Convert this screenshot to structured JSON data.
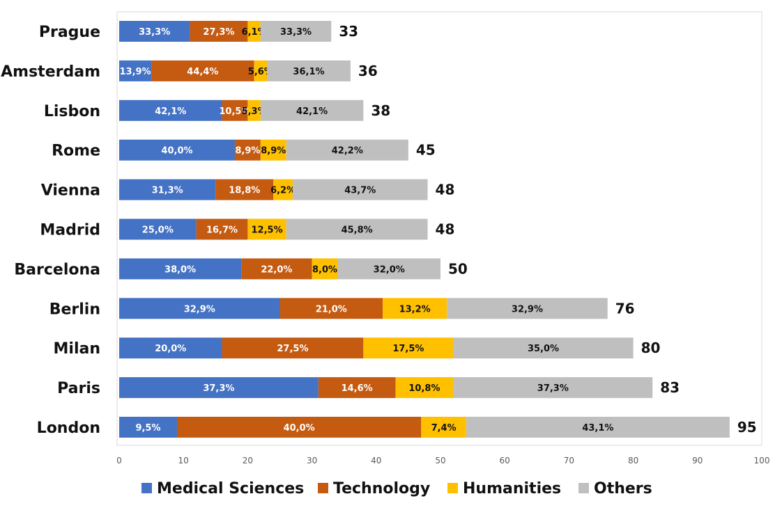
{
  "chart_data": {
    "type": "bar",
    "orientation": "horizontal",
    "stacked": true,
    "categories": [
      "Prague",
      "Amsterdam",
      "Lisbon",
      "Rome",
      "Vienna",
      "Madrid",
      "Barcelona",
      "Berlin",
      "Milan",
      "Paris",
      "London"
    ],
    "totals": [
      "33",
      "36",
      "38",
      "45",
      "48",
      "48",
      "50",
      "76",
      "80",
      "83",
      "95"
    ],
    "series": [
      {
        "name": "Medical Sciences",
        "color": "#4472C4",
        "label_color": "#ffffff",
        "values": [
          11,
          5,
          16,
          18,
          15,
          12,
          19,
          25,
          16,
          31,
          9
        ],
        "labels": [
          "33,3%",
          "13,9%",
          "42,1%",
          "40,0%",
          "31,3%",
          "25,0%",
          "38,0%",
          "32,9%",
          "20,0%",
          "37,3%",
          "9,5%"
        ]
      },
      {
        "name": "Technology",
        "color": "#C55A11",
        "label_color": "#ffffff",
        "values": [
          9,
          16,
          4,
          4,
          9,
          8,
          11,
          16,
          22,
          12,
          38
        ],
        "labels": [
          "27,3%",
          "44,4%",
          "10,5%",
          "8,9%",
          "18,8%",
          "16,7%",
          "22,0%",
          "21,0%",
          "27,5%",
          "14,6%",
          "40,0%"
        ]
      },
      {
        "name": "Humanities",
        "color": "#FFC000",
        "label_color": "#111111",
        "values": [
          2,
          2,
          2,
          4,
          3,
          6,
          4,
          10,
          14,
          9,
          7
        ],
        "labels": [
          "6,1%",
          "5,6%",
          "5,3%",
          "8,9%",
          "6,2%",
          "12,5%",
          "8,0%",
          "13,2%",
          "17,5%",
          "10,8%",
          "7,4%"
        ]
      },
      {
        "name": "Others",
        "color": "#BFBFBF",
        "label_color": "#111111",
        "values": [
          11,
          13,
          16,
          19,
          21,
          22,
          16,
          25,
          28,
          31,
          41
        ],
        "labels": [
          "33,3%",
          "36,1%",
          "42,1%",
          "42,2%",
          "43,7%",
          "45,8%",
          "32,0%",
          "32,9%",
          "35,0%",
          "37,3%",
          "43,1%"
        ]
      }
    ],
    "xlim": [
      0,
      100
    ],
    "xticks": [
      "0",
      "10",
      "20",
      "30",
      "40",
      "50",
      "60",
      "70",
      "80",
      "90",
      "100"
    ],
    "title": "",
    "xlabel": "",
    "ylabel": "",
    "grid": false,
    "legend_position": "bottom"
  }
}
